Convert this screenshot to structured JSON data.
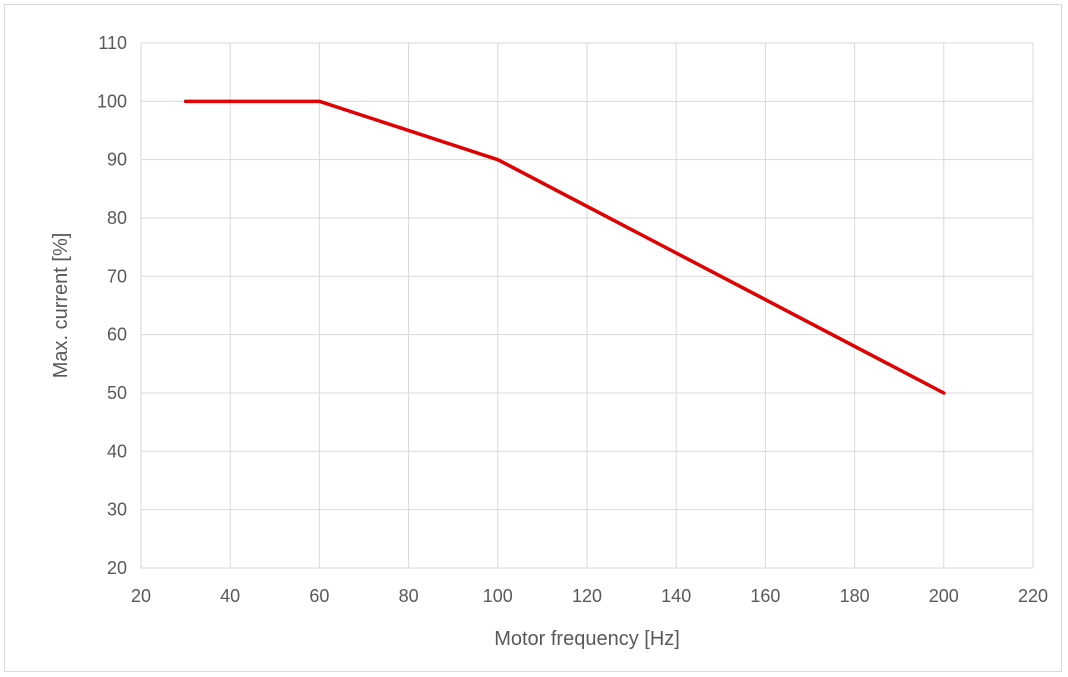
{
  "chart_data": {
    "type": "line",
    "title": "",
    "xlabel": "Motor frequency [Hz]",
    "ylabel": "Max. current [%]",
    "xlim": [
      20,
      220
    ],
    "ylim": [
      20,
      110
    ],
    "x_ticks": [
      20,
      40,
      60,
      80,
      100,
      120,
      140,
      160,
      180,
      200,
      220
    ],
    "y_ticks": [
      20,
      30,
      40,
      50,
      60,
      70,
      80,
      90,
      100,
      110
    ],
    "grid": true,
    "legend": "none",
    "series": [
      {
        "color": "#e00000",
        "points": [
          {
            "x": 30,
            "y": 100
          },
          {
            "x": 60,
            "y": 100
          },
          {
            "x": 100,
            "y": 90
          },
          {
            "x": 200,
            "y": 50
          }
        ]
      }
    ]
  }
}
